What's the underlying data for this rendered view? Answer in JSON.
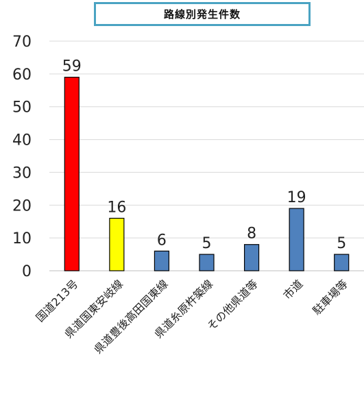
{
  "chart_data": {
    "type": "bar",
    "title": "路線別発生件数",
    "categories": [
      "国道213号",
      "県道国東安岐線",
      "県道豊後高田国東線",
      "県道糸原杵築線",
      "その他県道等",
      "市道",
      "駐車場等"
    ],
    "values": [
      59,
      16,
      6,
      5,
      8,
      19,
      5
    ],
    "bar_colors": [
      "#ff0000",
      "#ffff00",
      "#4f81bd",
      "#4f81bd",
      "#4f81bd",
      "#4f81bd",
      "#4f81bd"
    ],
    "bar_border_color": "#000000",
    "ylim": [
      0,
      70
    ],
    "yticks": [
      0,
      10,
      20,
      30,
      40,
      50,
      60,
      70
    ],
    "grid": true,
    "grid_color": "#d9d9d9",
    "data_labels": true,
    "xlabel": "",
    "ylabel": ""
  }
}
